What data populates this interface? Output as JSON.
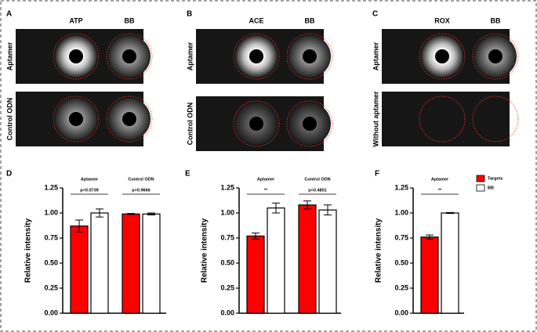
{
  "image_panels": [
    {
      "label": "A",
      "columns": [
        "ATP",
        "BB"
      ],
      "rows": [
        "Aptamer",
        "Control ODN"
      ]
    },
    {
      "label": "B",
      "columns": [
        "ACE",
        "BB"
      ],
      "rows": [
        "Aptamer",
        "Control ODN"
      ]
    },
    {
      "label": "C",
      "columns": [
        "ROX",
        "BB"
      ],
      "rows": [
        "Aptamer",
        "Without aptamer"
      ]
    }
  ],
  "chart_data": [
    {
      "type": "bar",
      "label": "D",
      "ylabel": "Relative intensity",
      "categories": [
        "Aptamer",
        "Control ODN"
      ],
      "annotations": [
        "p=0.0739",
        "p=0.9666"
      ],
      "series": [
        {
          "name": "Targets",
          "color": "#ff0000",
          "values": [
            0.87,
            0.99
          ],
          "errors": [
            0.06,
            0.005
          ]
        },
        {
          "name": "BB",
          "color": "#ffffff",
          "values": [
            1.0,
            0.99
          ],
          "errors": [
            0.04,
            0.01
          ]
        }
      ],
      "ylim": [
        0,
        1.25
      ],
      "yticks": [
        {
          "value": 0,
          "label": "0.00"
        },
        {
          "value": 0.25,
          "label": "0.25"
        },
        {
          "value": 0.5,
          "label": "0.50"
        },
        {
          "value": 0.75,
          "label": "0.75"
        },
        {
          "value": 1,
          "label": "1.00"
        },
        {
          "value": 1.25,
          "label": "1.25"
        }
      ],
      "legend": false
    },
    {
      "type": "bar",
      "label": "E",
      "ylabel": "Relative intensity",
      "categories": [
        "Aptamer",
        "Control ODN"
      ],
      "annotations": [
        "**",
        "p=0.4801"
      ],
      "series": [
        {
          "name": "Targets",
          "color": "#ff0000",
          "values": [
            0.77,
            1.08
          ],
          "errors": [
            0.03,
            0.04
          ]
        },
        {
          "name": "BB",
          "color": "#ffffff",
          "values": [
            1.05,
            1.03
          ],
          "errors": [
            0.05,
            0.05
          ]
        }
      ],
      "ylim": [
        0,
        1.25
      ],
      "yticks": [
        {
          "value": 0,
          "label": "0.00"
        },
        {
          "value": 0.25,
          "label": "0.25"
        },
        {
          "value": 0.5,
          "label": "0.50"
        },
        {
          "value": 0.75,
          "label": "0.75"
        },
        {
          "value": 1,
          "label": "1.00"
        },
        {
          "value": 1.25,
          "label": "1.25"
        }
      ],
      "legend": false
    },
    {
      "type": "bar",
      "label": "F",
      "ylabel": "Relative intensity",
      "categories": [
        "Aptamer"
      ],
      "annotations": [
        "**"
      ],
      "series": [
        {
          "name": "Targets",
          "color": "#ff0000",
          "values": [
            0.76
          ],
          "errors": [
            0.02
          ]
        },
        {
          "name": "BB",
          "color": "#ffffff",
          "values": [
            1.0
          ],
          "errors": [
            0.005
          ]
        }
      ],
      "ylim": [
        0,
        1.25
      ],
      "yticks": [
        {
          "value": 0,
          "label": "0.00"
        },
        {
          "value": 0.25,
          "label": "0.25"
        },
        {
          "value": 0.5,
          "label": "0.50"
        },
        {
          "value": 0.75,
          "label": "0.75"
        },
        {
          "value": 1,
          "label": "1.00"
        },
        {
          "value": 1.25,
          "label": "1.25"
        }
      ],
      "legend": "top-right"
    }
  ]
}
